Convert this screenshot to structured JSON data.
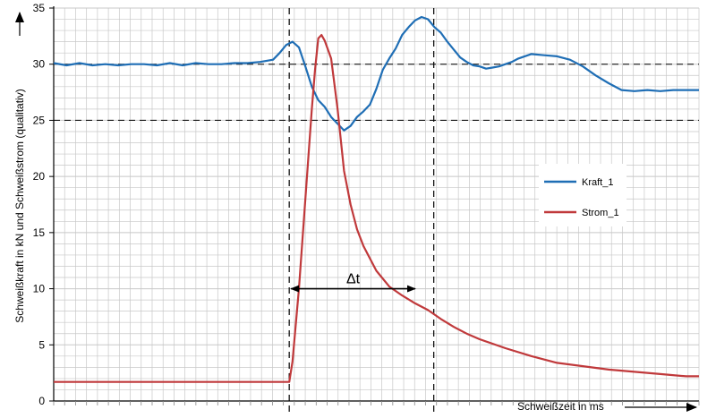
{
  "chart_data": {
    "type": "line",
    "title": "",
    "xlabel": "Schweißzeit in ms",
    "ylabel": "Schweißkraft in kN und Schweißstrom (qualitativ)",
    "xlim": [
      0,
      100
    ],
    "ylim": [
      0,
      35
    ],
    "y_ticks": [
      0,
      5,
      10,
      15,
      20,
      25,
      30,
      35
    ],
    "y_tick_labels": [
      "0",
      "5",
      "10",
      "15",
      "20",
      "25",
      "30",
      "35"
    ],
    "x_ticks_labeled": false,
    "grid": true,
    "legend_position": "right-middle",
    "dashed_reference_lines": {
      "horizontal_y": [
        25,
        30
      ],
      "vertical_x": [
        36.5,
        58.9
      ]
    },
    "annotation": {
      "label": "Δt",
      "x_from": 36.5,
      "x_to": 56.3,
      "y": 10
    },
    "series": [
      {
        "name": "Kraft_1",
        "color": "#1f6eb5",
        "x": [
          0,
          2,
          4,
          6,
          8,
          10,
          12,
          14,
          16,
          18,
          20,
          22,
          24,
          26,
          28,
          30,
          32,
          34,
          35,
          36,
          37,
          38,
          39,
          40,
          41,
          42,
          43,
          44,
          45,
          46,
          47,
          48,
          49,
          50,
          51,
          52,
          53,
          54,
          55,
          56,
          57,
          58,
          59,
          60,
          61,
          62,
          63,
          64,
          65,
          66,
          67,
          68,
          69,
          70,
          71,
          72,
          74,
          76,
          78,
          80,
          82,
          84,
          86,
          88,
          90,
          92,
          94,
          96,
          98,
          100
        ],
        "y": [
          30.1,
          29.9,
          30.1,
          29.9,
          30.0,
          29.9,
          30.0,
          30.0,
          29.9,
          30.1,
          29.9,
          30.1,
          30.0,
          30.0,
          30.1,
          30.1,
          30.2,
          30.4,
          31.0,
          31.7,
          32.0,
          31.5,
          29.8,
          28.0,
          26.8,
          26.2,
          25.3,
          24.7,
          24.1,
          24.5,
          25.3,
          25.8,
          26.4,
          27.8,
          29.5,
          30.5,
          31.4,
          32.6,
          33.3,
          33.9,
          34.2,
          34.0,
          33.3,
          32.8,
          32.0,
          31.3,
          30.6,
          30.2,
          29.9,
          29.8,
          29.6,
          29.7,
          29.8,
          30.0,
          30.2,
          30.5,
          30.9,
          30.8,
          30.7,
          30.4,
          29.8,
          29.0,
          28.3,
          27.7,
          27.6,
          27.7,
          27.6,
          27.7,
          27.7,
          27.7
        ],
        "x_fix": true
      },
      {
        "name": "Strom_1",
        "color": "#c0393b",
        "x": [
          0,
          5,
          10,
          15,
          20,
          25,
          30,
          34,
          36.5,
          37,
          38,
          39,
          40,
          40.5,
          41,
          41.5,
          42,
          43,
          44,
          45,
          46,
          47,
          48,
          50,
          52,
          54,
          56,
          58,
          60,
          62,
          64,
          66,
          70,
          74,
          78,
          82,
          86,
          90,
          94,
          98,
          100
        ],
        "y": [
          1.7,
          1.7,
          1.7,
          1.7,
          1.7,
          1.7,
          1.7,
          1.7,
          1.7,
          3.5,
          10.0,
          18.0,
          26.0,
          29.5,
          32.3,
          32.6,
          32.1,
          30.5,
          26.0,
          20.5,
          17.5,
          15.3,
          13.8,
          11.6,
          10.2,
          9.4,
          8.7,
          8.1,
          7.3,
          6.6,
          6.0,
          5.5,
          4.7,
          4.0,
          3.4,
          3.1,
          2.8,
          2.6,
          2.4,
          2.2,
          2.2
        ]
      }
    ]
  }
}
